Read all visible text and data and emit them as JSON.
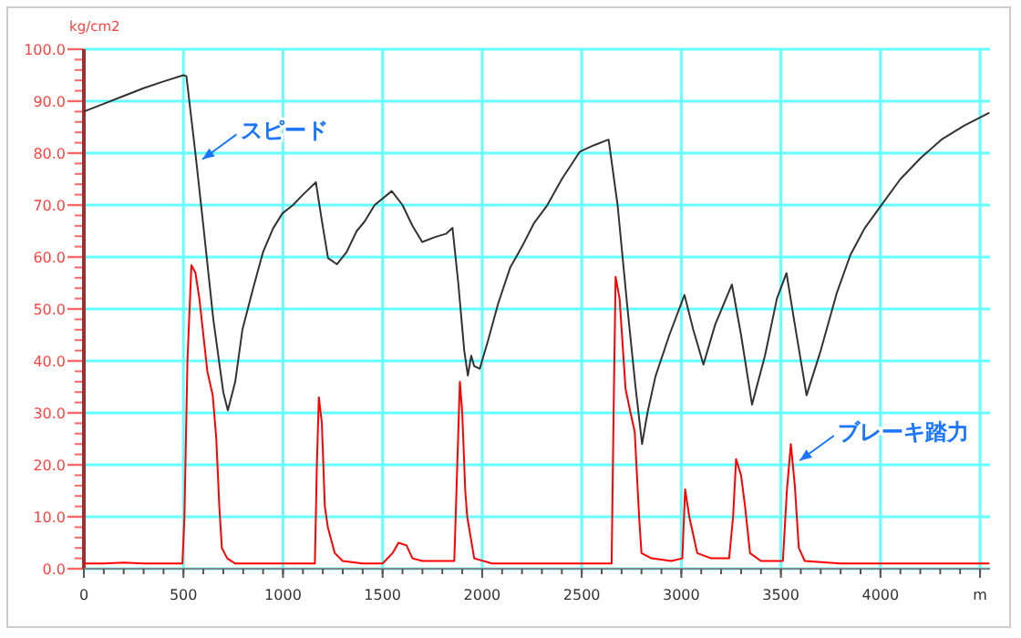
{
  "chart_data": {
    "type": "line",
    "ylabel": "kg/cm2",
    "xlim": [
      0,
      4550
    ],
    "ylim": [
      0,
      100
    ],
    "xticks": [
      0,
      500,
      1000,
      1500,
      2000,
      2500,
      3000,
      3500,
      4000,
      {
        "value": 4500,
        "label": "m"
      }
    ],
    "yticks": [
      {
        "value": 0,
        "label": "0.0"
      },
      {
        "value": 10,
        "label": "10.0"
      },
      {
        "value": 20,
        "label": "20.0"
      },
      {
        "value": 30,
        "label": "30.0"
      },
      {
        "value": 40,
        "label": "40.0"
      },
      {
        "value": 50,
        "label": "50.0"
      },
      {
        "value": 60,
        "label": "60.0"
      },
      {
        "value": 70,
        "label": "70.0"
      },
      {
        "value": 80,
        "label": "80.0"
      },
      {
        "value": 90,
        "label": "90.0"
      },
      {
        "value": 100,
        "label": "100.0"
      }
    ],
    "grid": true,
    "series": [
      {
        "color": "#333333",
        "x": [
          0,
          100,
          200,
          300,
          400,
          500,
          515,
          560,
          600,
          650,
          700,
          723,
          760,
          796,
          850,
          900,
          950,
          997,
          1050,
          1100,
          1165,
          1195,
          1226,
          1271,
          1320,
          1370,
          1409,
          1460,
          1546,
          1600,
          1650,
          1699,
          1760,
          1820,
          1851,
          1880,
          1910,
          1928,
          1945,
          1960,
          1988,
          2030,
          2080,
          2141,
          2200,
          2260,
          2324,
          2400,
          2491,
          2560,
          2635,
          2680,
          2730,
          2770,
          2803,
          2830,
          2870,
          2940,
          3016,
          3060,
          3111,
          3170,
          3254,
          3300,
          3355,
          3420,
          3480,
          3528,
          3570,
          3629,
          3700,
          3780,
          3849,
          3920,
          4001,
          4100,
          4200,
          4306,
          4420,
          4547
        ],
        "values": [
          88,
          89.5,
          91,
          92.5,
          93.8,
          95,
          94.8,
          80,
          66,
          48,
          34,
          30.5,
          36,
          46,
          54,
          61,
          65.5,
          68.4,
          70,
          72,
          74.4,
          67,
          59.8,
          58.6,
          61,
          65,
          66.8,
          70,
          72.7,
          70,
          66,
          62.9,
          63.8,
          64.5,
          65.6,
          55,
          42,
          37.2,
          41,
          39,
          38.5,
          44,
          51,
          58,
          62,
          66.5,
          69.8,
          75,
          80.3,
          81.5,
          82.6,
          70,
          50,
          35,
          24,
          30,
          37,
          45,
          52.7,
          46,
          39.3,
          47,
          54.7,
          45,
          31.6,
          41,
          52,
          56.9,
          47,
          33.4,
          42,
          53,
          60.4,
          65.5,
          69.8,
          75,
          79,
          82.6,
          85.3,
          87.8
        ]
      },
      {
        "color": "#ff0000",
        "x": [
          0,
          100,
          200,
          300,
          400,
          495,
          505,
          520,
          540,
          560,
          580,
          600,
          620,
          647,
          665,
          680,
          693,
          720,
          760,
          900,
          1050,
          1160,
          1170,
          1180,
          1195,
          1210,
          1225,
          1260,
          1300,
          1400,
          1500,
          1550,
          1580,
          1620,
          1650,
          1700,
          1800,
          1860,
          1875,
          1888,
          1900,
          1915,
          1925,
          1960,
          2050,
          2200,
          2400,
          2600,
          2650,
          2660,
          2670,
          2690,
          2720,
          2745,
          2766,
          2788,
          2800,
          2850,
          2950,
          3005,
          3019,
          3040,
          3080,
          3150,
          3240,
          3260,
          3275,
          3300,
          3320,
          3345,
          3400,
          3510,
          3530,
          3550,
          3570,
          3590,
          3620,
          3800,
          4000,
          4200,
          4400,
          4547
        ],
        "values": [
          1,
          1,
          1.2,
          1,
          1,
          1,
          10,
          40,
          58.4,
          57,
          52,
          45,
          38,
          33.4,
          25,
          12,
          4,
          2,
          1,
          1,
          1,
          1,
          20,
          33,
          28,
          12,
          8,
          3,
          1.5,
          1,
          1,
          3,
          5,
          4.5,
          2,
          1.5,
          1.5,
          1.5,
          20,
          36,
          30,
          15,
          10,
          2,
          1,
          1,
          1,
          1,
          1,
          30,
          56.2,
          52,
          34.6,
          30,
          26.4,
          10,
          3,
          2,
          1.5,
          2,
          15.3,
          10,
          3,
          2,
          2,
          10,
          21.1,
          18,
          12,
          3,
          1.5,
          1.5,
          15,
          24,
          16,
          4,
          1.5,
          1,
          1,
          1,
          1,
          1
        ]
      }
    ],
    "annotations": [
      {
        "text": "スピード",
        "x": 566,
        "y": 78
      },
      {
        "text": "ブレーキ踏力",
        "x": 3565,
        "y": 20
      }
    ]
  }
}
